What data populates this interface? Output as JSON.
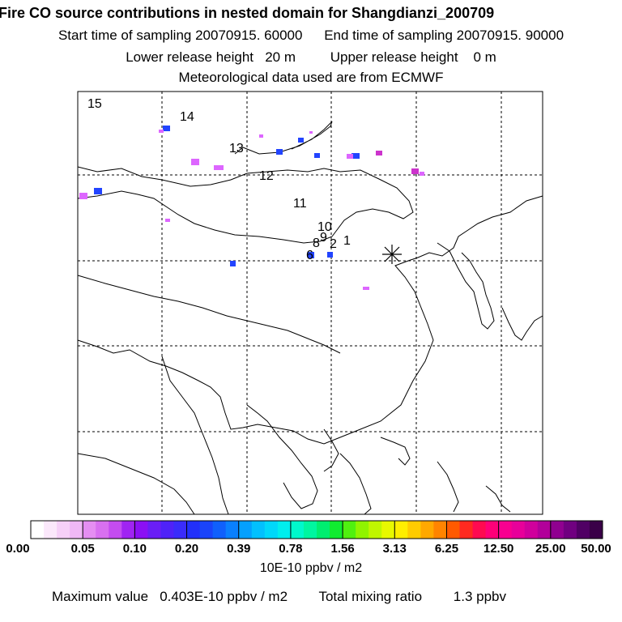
{
  "header": {
    "title": "Fire CO source contributions in nested domain for Shangdianzi_200709",
    "start_label": "Start time of sampling",
    "start_value": "20070915. 60000",
    "end_label": "End time of sampling",
    "end_value": "20070915. 90000",
    "lower_label": "Lower release height",
    "lower_value": "20 m",
    "upper_label": "Upper release height",
    "upper_value": "0 m",
    "met_line": "Meteorological data used are from ECMWF"
  },
  "map": {
    "station_marker": "asterisk",
    "trajectory_labels": [
      "15",
      "14",
      "13",
      "12",
      "11",
      "10",
      "9",
      "8",
      "2",
      "1",
      "6"
    ],
    "colors": {
      "blue": "#2244ff",
      "magenta": "#dd66ff",
      "pink": "#cc33cc",
      "coast": "#000000",
      "grid": "#000000"
    }
  },
  "colorbar": {
    "labels": [
      "0.00",
      "0.05",
      "0.10",
      "0.20",
      "0.39",
      "0.78",
      "1.56",
      "3.13",
      "6.25",
      "12.50",
      "25.00",
      "50.00"
    ],
    "colors": [
      "#ffffff",
      "#fbe8fb",
      "#f6d0f8",
      "#f0b8f6",
      "#e58ef2",
      "#d870f0",
      "#c44cf0",
      "#a024f2",
      "#8b10f4",
      "#6a1ef6",
      "#4f22f8",
      "#3a2cfa",
      "#2230fa",
      "#1a44fa",
      "#1060fc",
      "#0a80fe",
      "#04a0fe",
      "#02c0fe",
      "#00d8fa",
      "#00eeee",
      "#00f8cc",
      "#00f6a0",
      "#00ee70",
      "#10ec30",
      "#50f010",
      "#90f400",
      "#c0f600",
      "#e8f800",
      "#ffee00",
      "#ffcc00",
      "#ffa800",
      "#ff8400",
      "#ff5a00",
      "#ff2a20",
      "#ff0a50",
      "#ff0078",
      "#f80090",
      "#e8009a",
      "#d0009c",
      "#b2009a",
      "#900090",
      "#700080",
      "#500064",
      "#3a0048"
    ],
    "units": "10E-10 ppbv / m2"
  },
  "footer": {
    "max_label": "Maximum value",
    "max_value": "0.403E-10 ppbv / m2",
    "total_label": "Total mixing ratio",
    "total_value": "1.3 ppbv"
  }
}
